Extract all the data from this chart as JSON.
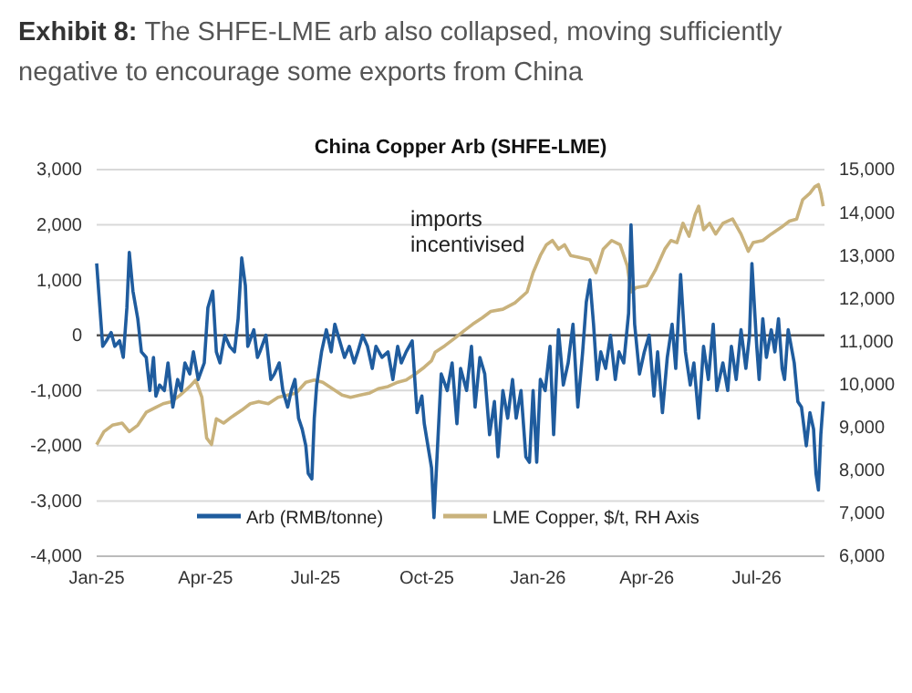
{
  "chart_data": {
    "type": "line",
    "title": "China Copper Arb (SHFE-LME)",
    "subtitle": "Exhibit 8: The SHFE-LME arb also collapsed, moving sufficiently negative to encourage some exports from China",
    "annotations": [
      "imports incentivised"
    ],
    "xlim": [
      "2025-01-01",
      "2026-08-26"
    ],
    "xticks": [
      {
        "value": "2025-01-01",
        "label": "Jan-25"
      },
      {
        "value": "2025-04-01",
        "label": "Apr-25"
      },
      {
        "value": "2025-07-01",
        "label": "Jul-25"
      },
      {
        "value": "2025-10-01",
        "label": "Oct-25"
      },
      {
        "value": "2026-01-01",
        "label": "Jan-26"
      },
      {
        "value": "2026-04-01",
        "label": "Apr-26"
      },
      {
        "value": "2026-07-01",
        "label": "Jul-26"
      }
    ],
    "ylim": [
      -4000,
      3000
    ],
    "yticks": [
      {
        "value": -4000,
        "label": "-4,000"
      },
      {
        "value": -3000,
        "label": "-3,000"
      },
      {
        "value": -2000,
        "label": "-2,000"
      },
      {
        "value": -1000,
        "label": "-1,000"
      },
      0,
      {
        "value": 1000,
        "label": "1,000"
      },
      {
        "value": 2000,
        "label": "2,000"
      },
      {
        "value": 3000,
        "label": "3,000"
      }
    ],
    "y2lim": [
      6000,
      15000
    ],
    "y2ticks": [
      {
        "value": 6000,
        "label": "6,000"
      },
      {
        "value": 7000,
        "label": "7,000"
      },
      {
        "value": 8000,
        "label": "8,000"
      },
      {
        "value": 9000,
        "label": "9,000"
      },
      {
        "value": 10000,
        "label": "10,000"
      },
      {
        "value": 11000,
        "label": "11,000"
      },
      {
        "value": 12000,
        "label": "12,000"
      },
      {
        "value": 13000,
        "label": "13,000"
      },
      {
        "value": 14000,
        "label": "14,000"
      },
      {
        "value": 15000,
        "label": "15,000"
      }
    ],
    "grid": "y",
    "legend": "bottom",
    "ref_lines": [
      {
        "axis": "y",
        "value": 0,
        "color": "#555555"
      }
    ],
    "series": [
      {
        "name": "Arb (RMB/tonne)",
        "color": "#1f5c9e",
        "x": [
          "2025-01-01",
          "2025-01-03",
          "2025-01-06",
          "2025-01-09",
          "2025-01-13",
          "2025-01-16",
          "2025-01-20",
          "2025-01-23",
          "2025-01-26",
          "2025-01-28",
          "2025-01-31",
          "2025-02-04",
          "2025-02-07",
          "2025-02-11",
          "2025-02-14",
          "2025-02-17",
          "2025-02-19",
          "2025-02-22",
          "2025-02-26",
          "2025-03-01",
          "2025-03-05",
          "2025-03-09",
          "2025-03-12",
          "2025-03-15",
          "2025-03-19",
          "2025-03-22",
          "2025-03-26",
          "2025-03-31",
          "2025-04-03",
          "2025-04-07",
          "2025-04-10",
          "2025-04-13",
          "2025-04-17",
          "2025-04-21",
          "2025-04-25",
          "2025-04-28",
          "2025-05-01",
          "2025-05-04",
          "2025-05-06",
          "2025-05-11",
          "2025-05-14",
          "2025-05-16",
          "2025-05-21",
          "2025-05-25",
          "2025-05-28",
          "2025-06-01",
          "2025-06-04",
          "2025-06-08",
          "2025-06-11",
          "2025-06-14",
          "2025-06-17",
          "2025-06-20",
          "2025-06-23",
          "2025-06-25",
          "2025-06-28",
          "2025-06-30",
          "2025-07-02",
          "2025-07-06",
          "2025-07-10",
          "2025-07-14",
          "2025-07-17",
          "2025-07-21",
          "2025-07-25",
          "2025-07-29",
          "2025-08-02",
          "2025-08-05",
          "2025-08-09",
          "2025-08-13",
          "2025-08-17",
          "2025-08-20",
          "2025-08-25",
          "2025-08-30",
          "2025-09-03",
          "2025-09-07",
          "2025-09-10",
          "2025-09-14",
          "2025-09-19",
          "2025-09-23",
          "2025-09-27",
          "2025-09-29",
          "2025-10-02",
          "2025-10-05",
          "2025-10-07",
          "2025-10-10",
          "2025-10-13",
          "2025-10-18",
          "2025-10-22",
          "2025-10-26",
          "2025-10-29",
          "2025-11-03",
          "2025-11-07",
          "2025-11-10",
          "2025-11-14",
          "2025-11-18",
          "2025-11-22",
          "2025-11-26",
          "2025-11-29",
          "2025-12-03",
          "2025-12-07",
          "2025-12-11",
          "2025-12-14",
          "2025-12-18",
          "2025-12-22",
          "2025-12-25",
          "2025-12-28",
          "2025-12-31",
          "2026-01-03",
          "2026-01-07",
          "2026-01-11",
          "2026-01-14",
          "2026-01-18",
          "2026-01-22",
          "2026-01-26",
          "2026-01-30",
          "2026-02-03",
          "2026-02-07",
          "2026-02-10",
          "2026-02-13",
          "2026-02-16",
          "2026-02-19",
          "2026-02-22",
          "2026-02-26",
          "2026-03-02",
          "2026-03-06",
          "2026-03-09",
          "2026-03-13",
          "2026-03-17",
          "2026-03-19",
          "2026-03-22",
          "2026-03-26",
          "2026-03-30",
          "2026-04-03",
          "2026-04-07",
          "2026-04-10",
          "2026-04-14",
          "2026-04-18",
          "2026-04-22",
          "2026-04-25",
          "2026-04-29",
          "2026-05-03",
          "2026-05-07",
          "2026-05-10",
          "2026-05-14",
          "2026-05-18",
          "2026-05-22",
          "2026-05-26",
          "2026-05-29",
          "2026-06-03",
          "2026-06-07",
          "2026-06-10",
          "2026-06-14",
          "2026-06-18",
          "2026-06-22",
          "2026-06-25",
          "2026-06-27",
          "2026-07-01",
          "2026-07-03",
          "2026-07-06",
          "2026-07-09",
          "2026-07-13",
          "2026-07-16",
          "2026-07-19",
          "2026-07-22",
          "2026-07-24",
          "2026-07-27",
          "2026-08-01",
          "2026-08-04",
          "2026-08-07",
          "2026-08-11",
          "2026-08-14",
          "2026-08-17",
          "2026-08-19",
          "2026-08-21",
          "2026-08-23",
          "2026-08-25"
        ],
        "values": [
          1300,
          700,
          -200,
          -100,
          50,
          -200,
          -100,
          -400,
          500,
          1500,
          800,
          300,
          -300,
          -400,
          -1000,
          -400,
          -1100,
          -900,
          -1000,
          -500,
          -1300,
          -800,
          -1000,
          -500,
          -700,
          -300,
          -800,
          -500,
          500,
          800,
          -300,
          -500,
          0,
          -200,
          -300,
          300,
          1400,
          900,
          -200,
          100,
          -400,
          -300,
          0,
          -800,
          -700,
          -500,
          -1000,
          -1300,
          -1000,
          -800,
          -1500,
          -1700,
          -2000,
          -2500,
          -2600,
          -1500,
          -900,
          -300,
          100,
          -300,
          200,
          -100,
          -400,
          -200,
          -500,
          -300,
          0,
          -200,
          -600,
          -200,
          -400,
          -300,
          -800,
          -200,
          -500,
          -300,
          -100,
          -1400,
          -1100,
          -1600,
          -2000,
          -2400,
          -3300,
          -2000,
          -700,
          -1000,
          -500,
          -1600,
          -600,
          -1000,
          -200,
          -1300,
          -400,
          -700,
          -1800,
          -1200,
          -2200,
          -1000,
          -1500,
          -800,
          -1500,
          -1000,
          -2200,
          -2300,
          -1000,
          -2300,
          -800,
          -1000,
          -200,
          -1800,
          100,
          -900,
          -500,
          200,
          -1300,
          -300,
          600,
          1000,
          200,
          -800,
          -300,
          -600,
          0,
          -800,
          -300,
          -500,
          400,
          2000,
          200,
          -700,
          -300,
          0,
          -1100,
          -300,
          -1400,
          -400,
          200,
          -600,
          1100,
          -300,
          -900,
          -500,
          -1500,
          -200,
          -800,
          200,
          -1000,
          -500,
          -1000,
          -200,
          -800,
          100,
          -600,
          0,
          1300,
          -200,
          -800,
          300,
          -400,
          100,
          -300,
          300,
          -600,
          -800,
          100,
          -500,
          -1200,
          -1300,
          -2000,
          -1400,
          -1700,
          -2500,
          -2800,
          -1800,
          -1200
        ]
      },
      {
        "name": "LME Copper, $/t, RH Axis",
        "color": "#c9b27c",
        "axis": "y2",
        "x": [
          "2025-01-01",
          "2025-01-07",
          "2025-01-14",
          "2025-01-22",
          "2025-01-28",
          "2025-02-04",
          "2025-02-11",
          "2025-02-18",
          "2025-02-25",
          "2025-03-04",
          "2025-03-11",
          "2025-03-19",
          "2025-03-24",
          "2025-03-29",
          "2025-04-02",
          "2025-04-06",
          "2025-04-10",
          "2025-04-16",
          "2025-04-23",
          "2025-05-01",
          "2025-05-08",
          "2025-05-15",
          "2025-05-23",
          "2025-05-31",
          "2025-06-08",
          "2025-06-15",
          "2025-06-23",
          "2025-06-30",
          "2025-07-07",
          "2025-07-15",
          "2025-07-23",
          "2025-07-30",
          "2025-08-07",
          "2025-08-15",
          "2025-08-22",
          "2025-08-30",
          "2025-09-07",
          "2025-09-14",
          "2025-09-22",
          "2025-09-29",
          "2025-10-05",
          "2025-10-08",
          "2025-10-16",
          "2025-10-23",
          "2025-11-01",
          "2025-11-08",
          "2025-11-16",
          "2025-11-23",
          "2025-12-03",
          "2025-12-13",
          "2025-12-23",
          "2025-12-28",
          "2026-01-03",
          "2026-01-08",
          "2026-01-13",
          "2026-01-18",
          "2026-01-23",
          "2026-01-28",
          "2026-02-05",
          "2026-02-13",
          "2026-02-18",
          "2026-02-24",
          "2026-03-03",
          "2026-03-10",
          "2026-03-16",
          "2026-03-19",
          "2026-03-23",
          "2026-04-01",
          "2026-04-08",
          "2026-04-16",
          "2026-04-21",
          "2026-04-26",
          "2026-05-01",
          "2026-05-06",
          "2026-05-11",
          "2026-05-14",
          "2026-05-18",
          "2026-05-23",
          "2026-05-28",
          "2026-06-03",
          "2026-06-11",
          "2026-06-18",
          "2026-06-24",
          "2026-06-28",
          "2026-07-06",
          "2026-07-13",
          "2026-07-21",
          "2026-07-28",
          "2026-08-03",
          "2026-08-08",
          "2026-08-14",
          "2026-08-18",
          "2026-08-21",
          "2026-08-23",
          "2026-08-25"
        ],
        "values": [
          8600,
          8900,
          9050,
          9100,
          8900,
          9050,
          9350,
          9450,
          9550,
          9600,
          9750,
          9950,
          10100,
          9700,
          8750,
          8600,
          9200,
          9100,
          9250,
          9400,
          9550,
          9600,
          9550,
          9700,
          9750,
          9800,
          10050,
          10100,
          10050,
          9900,
          9750,
          9700,
          9750,
          9800,
          9900,
          9950,
          10050,
          10100,
          10250,
          10400,
          10550,
          10750,
          10900,
          11050,
          11250,
          11400,
          11550,
          11700,
          11750,
          11900,
          12150,
          12600,
          13000,
          13250,
          13350,
          13150,
          13250,
          13000,
          12950,
          12900,
          12600,
          13150,
          13350,
          13250,
          12750,
          12150,
          12250,
          12300,
          12650,
          13150,
          13350,
          13300,
          13750,
          13450,
          13950,
          14150,
          13600,
          13750,
          13500,
          13750,
          13850,
          13500,
          13100,
          13300,
          13350,
          13500,
          13650,
          13800,
          13850,
          14300,
          14450,
          14600,
          14650,
          14450,
          14150
        ]
      }
    ]
  }
}
